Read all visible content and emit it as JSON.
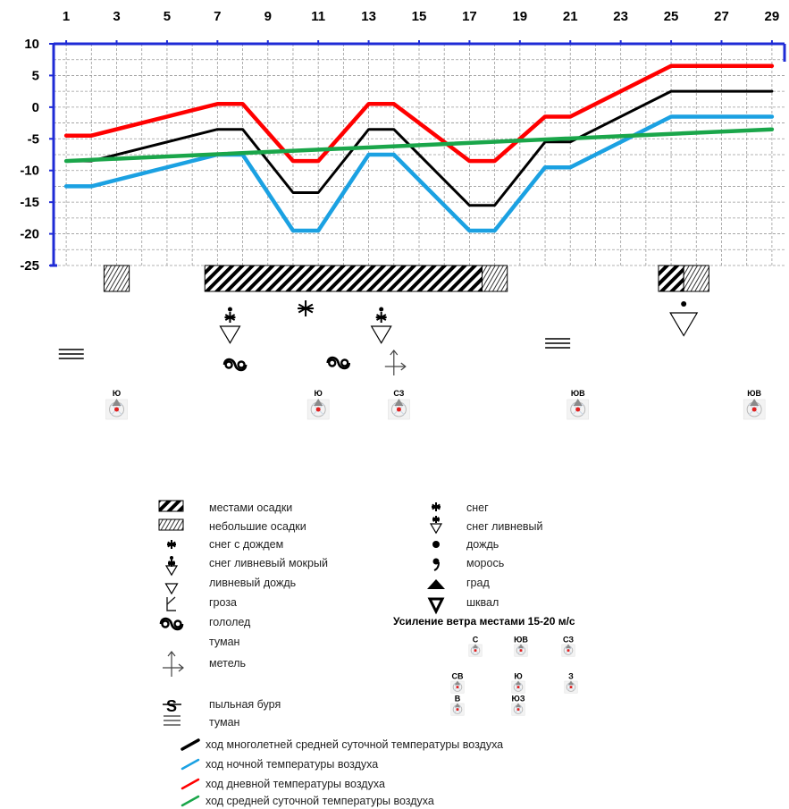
{
  "chart_data": {
    "type": "line",
    "x_ticks": [
      "1",
      "3",
      "5",
      "7",
      "9",
      "11",
      "13",
      "15",
      "17",
      "19",
      "21",
      "23",
      "25",
      "27",
      "29"
    ],
    "y_ticks": [
      "10",
      "5",
      "0",
      "-5",
      "-10",
      "-15",
      "-20",
      "-25"
    ],
    "xlim": [
      0.5,
      29.5
    ],
    "ylim": [
      -25,
      10
    ],
    "grid": true,
    "series": [
      {
        "name": "ход многолетней средней суточной температуры воздуха",
        "color": "#000000",
        "points": [
          [
            1,
            -8.5
          ],
          [
            2,
            -8.5
          ],
          [
            7,
            -3.5
          ],
          [
            8,
            -3.5
          ],
          [
            10,
            -13.5
          ],
          [
            11,
            -13.5
          ],
          [
            13,
            -3.5
          ],
          [
            14,
            -3.5
          ],
          [
            17,
            -15.5
          ],
          [
            18,
            -15.5
          ],
          [
            20,
            -5.5
          ],
          [
            21,
            -5.5
          ],
          [
            25,
            2.5
          ],
          [
            29,
            2.5
          ]
        ]
      },
      {
        "name": "ход ночной температуры воздуха",
        "color": "#1ba1e2",
        "points": [
          [
            1,
            -12.5
          ],
          [
            2,
            -12.5
          ],
          [
            7,
            -7.5
          ],
          [
            8,
            -7.5
          ],
          [
            10,
            -19.5
          ],
          [
            11,
            -19.5
          ],
          [
            13,
            -7.5
          ],
          [
            14,
            -7.5
          ],
          [
            17,
            -19.5
          ],
          [
            18,
            -19.5
          ],
          [
            20,
            -9.5
          ],
          [
            21,
            -9.5
          ],
          [
            25,
            -1.5
          ],
          [
            29,
            -1.5
          ]
        ]
      },
      {
        "name": "ход дневной температуры воздуха",
        "color": "#ff0000",
        "points": [
          [
            1,
            -4.5
          ],
          [
            2,
            -4.5
          ],
          [
            7,
            0.5
          ],
          [
            8,
            0.5
          ],
          [
            10,
            -8.5
          ],
          [
            11,
            -8.5
          ],
          [
            13,
            0.5
          ],
          [
            14,
            0.5
          ],
          [
            17,
            -8.5
          ],
          [
            18,
            -8.5
          ],
          [
            20,
            -1.5
          ],
          [
            21,
            -1.5
          ],
          [
            25,
            6.5
          ],
          [
            29,
            6.5
          ]
        ]
      },
      {
        "name": "ход средней суточной температуры воздуха",
        "color": "#1aa64a",
        "points": [
          [
            1,
            -8.5
          ],
          [
            29,
            -3.5
          ]
        ]
      }
    ],
    "precipitation_bars": [
      {
        "type": "light",
        "from": 2.5,
        "to": 3.5
      },
      {
        "type": "heavy",
        "from": 6.5,
        "to": 17.5
      },
      {
        "type": "light",
        "from": 17.5,
        "to": 18.5
      },
      {
        "type": "heavy",
        "from": 24.5,
        "to": 25.5
      },
      {
        "type": "light",
        "from": 25.5,
        "to": 26.5
      }
    ],
    "weather_symbols": [
      {
        "day": 1,
        "symbol": "туман"
      },
      {
        "day": 7,
        "symbol": "снег ливневый мокрый"
      },
      {
        "day": 7,
        "symbol": "гололед"
      },
      {
        "day": 10,
        "symbol": "снег"
      },
      {
        "day": 11,
        "symbol": "гололед"
      },
      {
        "day": 13,
        "symbol": "снег ливневый мокрый"
      },
      {
        "day": 13,
        "symbol": "метель"
      },
      {
        "day": 20,
        "symbol": "туман"
      },
      {
        "day": 25,
        "symbol": "ливневый дождь"
      }
    ],
    "wind": [
      {
        "day": 3,
        "label": "Ю"
      },
      {
        "day": 11,
        "label": "Ю"
      },
      {
        "day": 14,
        "label": "СЗ"
      },
      {
        "day": 21,
        "label": "ЮВ"
      },
      {
        "day": 28,
        "label": "ЮВ"
      }
    ]
  },
  "legend": {
    "left": [
      {
        "icon": "heavy-hatch",
        "text": "местами осадки"
      },
      {
        "icon": "light-hatch",
        "text": "небольшие осадки"
      },
      {
        "icon": "sleet",
        "text": "снег с дождем"
      },
      {
        "icon": "wet-snow-shower",
        "text": "снег ливневый мокрый"
      },
      {
        "icon": "rain-shower",
        "text": "ливневый дождь"
      },
      {
        "icon": "thunderstorm",
        "text": "гроза"
      },
      {
        "icon": "glaze",
        "text": "гололед"
      },
      {
        "icon": "none",
        "text": "туман"
      },
      {
        "icon": "blizzard",
        "text": "метель"
      },
      {
        "icon": "dust-storm",
        "text": "пыльная буря"
      },
      {
        "icon": "fog",
        "text": "туман"
      }
    ],
    "right": [
      {
        "icon": "snow",
        "text": "снег"
      },
      {
        "icon": "snow-shower",
        "text": "снег ливневый"
      },
      {
        "icon": "rain",
        "text": "дождь"
      },
      {
        "icon": "drizzle",
        "text": "морось"
      },
      {
        "icon": "hail",
        "text": "град"
      },
      {
        "icon": "squall",
        "text": "шквал"
      }
    ],
    "wind_title": "Усиление ветра местами 15-20 м/с",
    "wind_labels": [
      "С",
      "ЮВ",
      "СЗ",
      "СВ",
      "Ю",
      "З",
      "В",
      "ЮЗ"
    ],
    "lines": [
      {
        "color": "#000000",
        "text": "ход многолетней средней суточной температуры воздуха"
      },
      {
        "color": "#1ba1e2",
        "text": "ход ночной температуры воздуха"
      },
      {
        "color": "#ff0000",
        "text": "ход дневной температуры воздуха"
      },
      {
        "color": "#1aa64a",
        "text": "ход средней суточной температуры воздуха"
      }
    ]
  }
}
